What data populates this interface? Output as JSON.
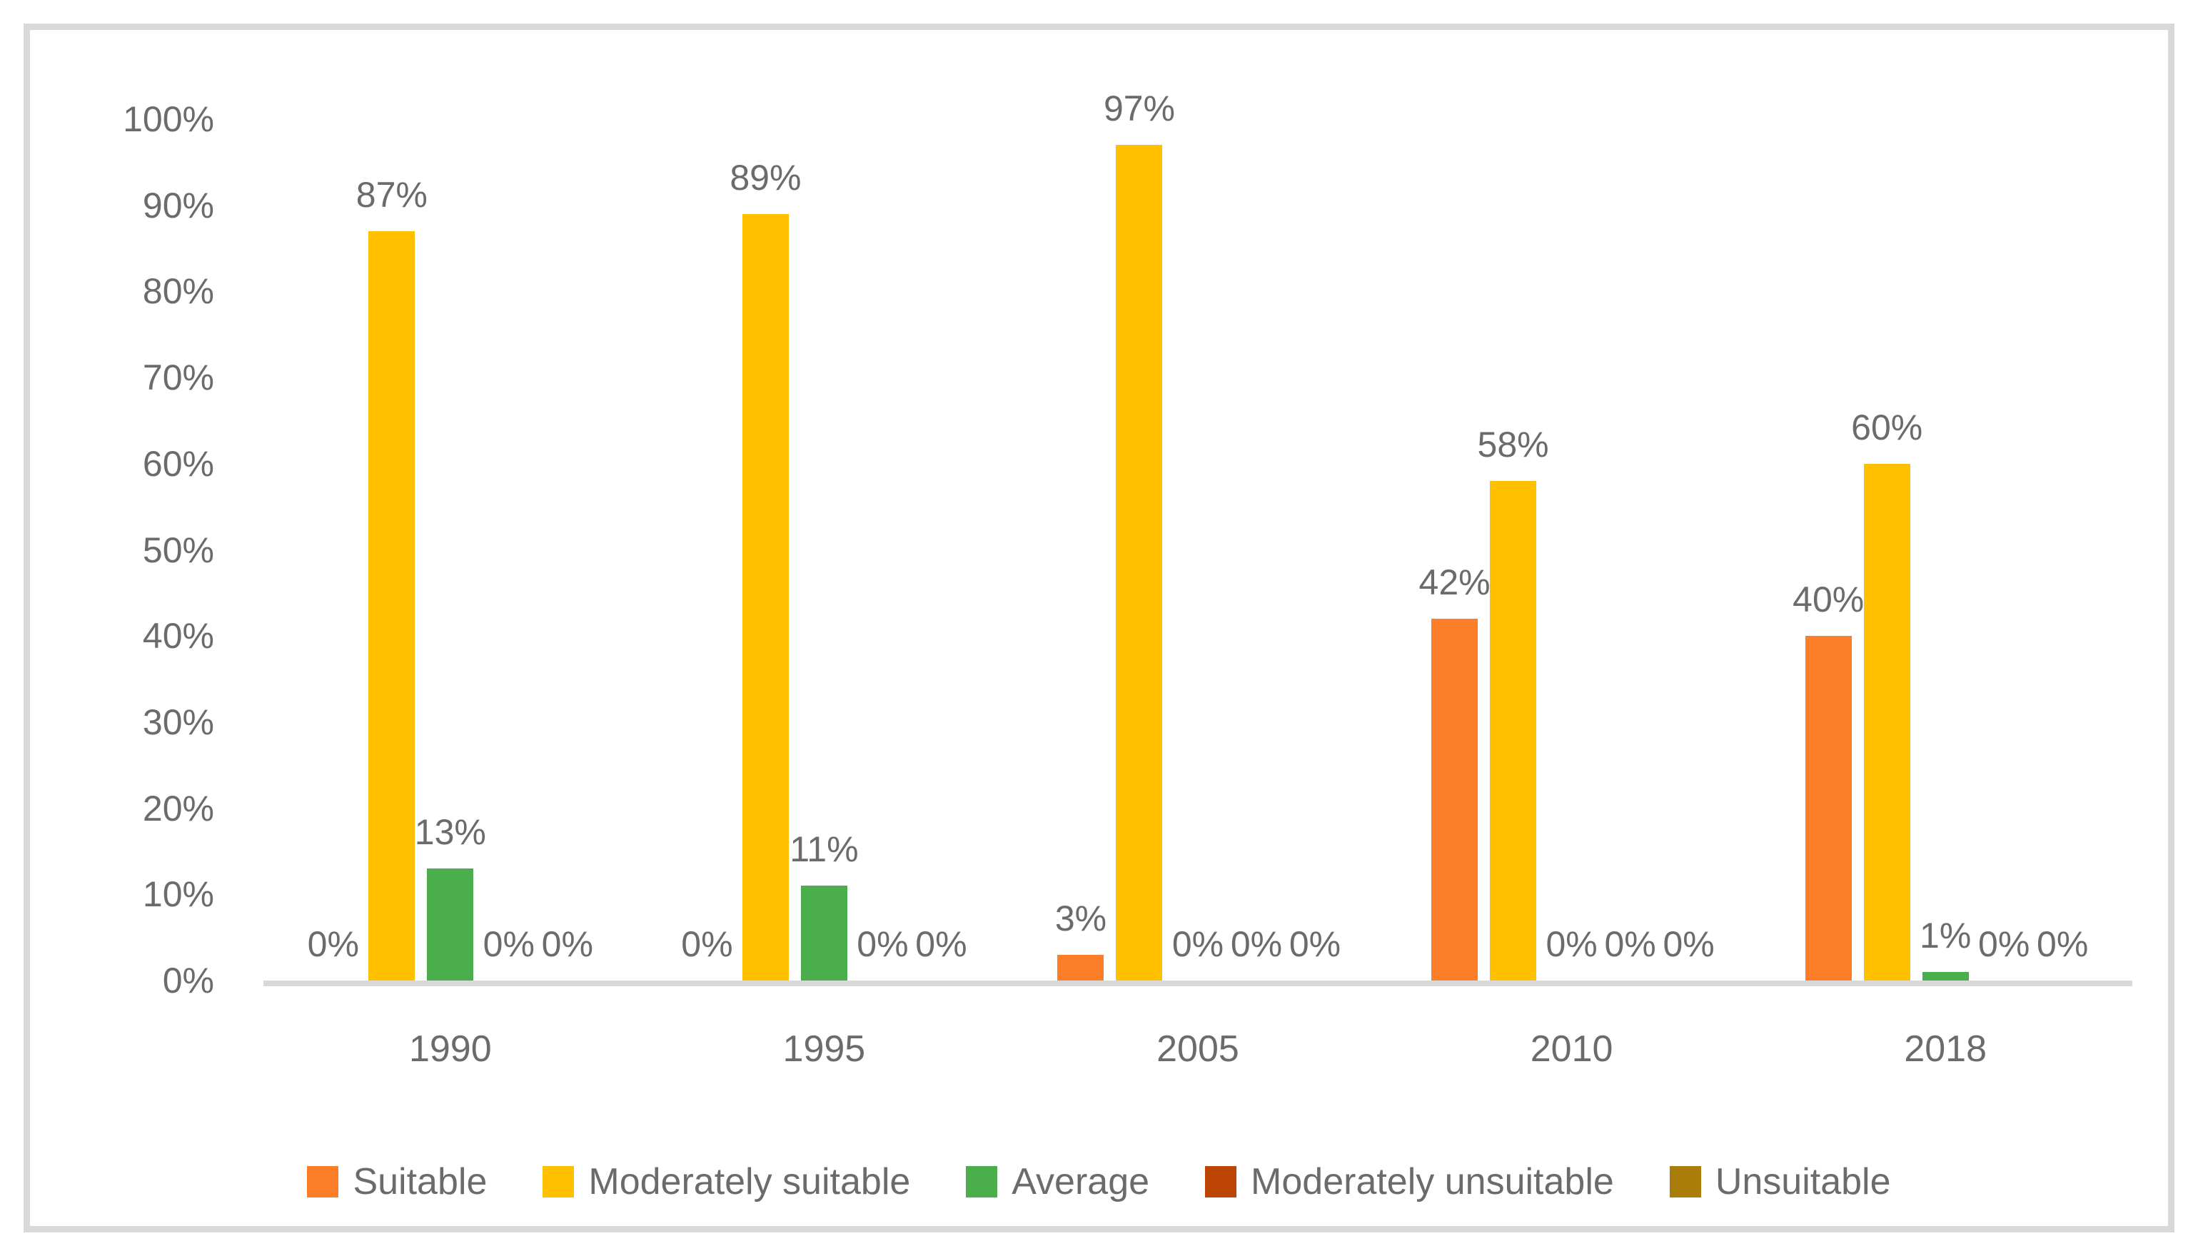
{
  "chart_data": {
    "type": "bar",
    "title": "",
    "categories": [
      "1990",
      "1995",
      "2005",
      "2010",
      "2018"
    ],
    "series": [
      {
        "name": "Suitable",
        "color": "#FC7E28",
        "values": [
          0,
          0,
          3,
          42,
          40
        ]
      },
      {
        "name": "Moderately suitable",
        "color": "#FFC000",
        "values": [
          87,
          89,
          97,
          58,
          60
        ]
      },
      {
        "name": "Average",
        "color": "#4BAE4C",
        "values": [
          13,
          11,
          0,
          0,
          1
        ]
      },
      {
        "name": "Moderately unsuitable",
        "color": "#BC4504",
        "values": [
          0,
          0,
          0,
          0,
          0
        ]
      },
      {
        "name": "Unsuitable",
        "color": "#AA7D0A",
        "values": [
          0,
          0,
          0,
          0,
          0
        ]
      }
    ],
    "data_label_format": "{value}%",
    "y_ticks": [
      {
        "value": 100,
        "label": "100%"
      },
      {
        "value": 90,
        "label": "90%"
      },
      {
        "value": 80,
        "label": "80%"
      },
      {
        "value": 70,
        "label": "70%"
      },
      {
        "value": 60,
        "label": "60%"
      },
      {
        "value": 50,
        "label": "50%"
      },
      {
        "value": 40,
        "label": "40%"
      },
      {
        "value": 30,
        "label": "30%"
      },
      {
        "value": 20,
        "label": "20%"
      },
      {
        "value": 10,
        "label": "10%"
      },
      {
        "value": 0,
        "label": "0%"
      }
    ],
    "ylim": [
      0,
      100
    ],
    "xlabel": "",
    "ylabel": "",
    "grid": false,
    "legend_position": "bottom",
    "colors": {
      "axis_line": "#D9D9D9",
      "frame_border": "#D9D9D9",
      "text": "#6B6B6B",
      "background": "#FFFFFF"
    }
  }
}
